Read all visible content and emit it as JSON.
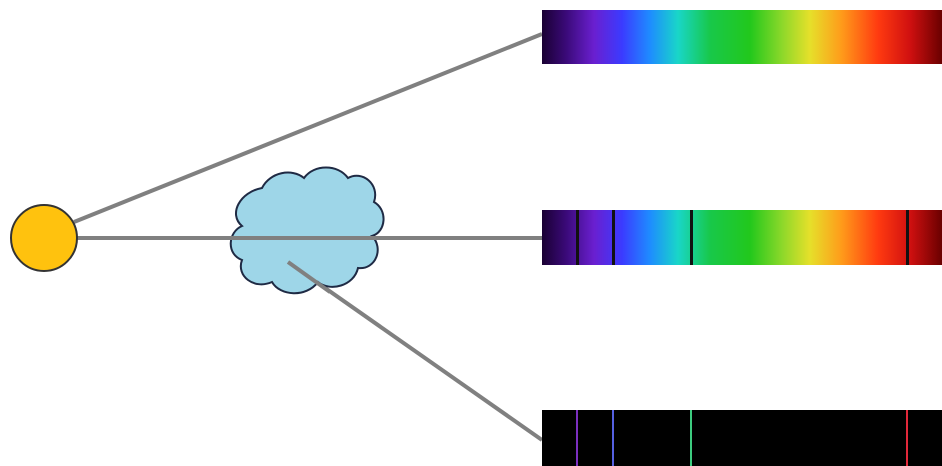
{
  "diagram": {
    "light_source": {
      "icon": "sun-icon",
      "fill": "#FFC20E",
      "stroke": "#333333"
    },
    "gas_cloud": {
      "icon": "cloud-icon",
      "fill": "#9ED6E8",
      "stroke": "#1F2A44"
    },
    "ray_color": "#808080",
    "spectra": [
      {
        "kind": "continuous",
        "lines": []
      },
      {
        "kind": "absorption",
        "lines": [
          "violet",
          "indigo",
          "green",
          "red"
        ]
      },
      {
        "kind": "emission",
        "lines": [
          "violet",
          "indigo",
          "green",
          "red"
        ]
      }
    ],
    "spectrum_colors": {
      "violet": "#7B2FBF",
      "indigo": "#5560E0",
      "green": "#3CCB7F",
      "red": "#E2283A",
      "dark_line": "#111111",
      "emission_background": "#000000"
    }
  }
}
